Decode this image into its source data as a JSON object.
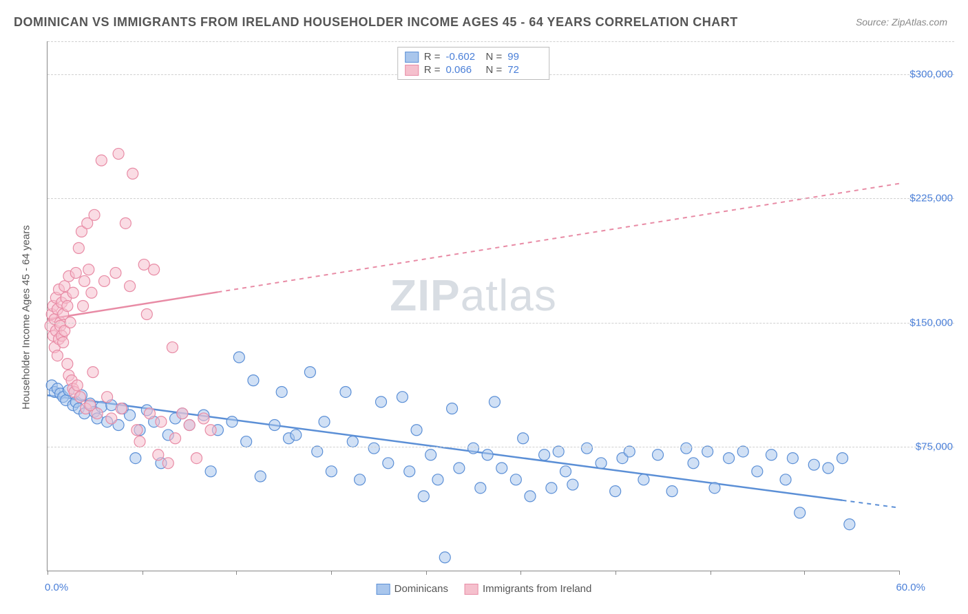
{
  "title": "DOMINICAN VS IMMIGRANTS FROM IRELAND HOUSEHOLDER INCOME AGES 45 - 64 YEARS CORRELATION CHART",
  "source": "Source: ZipAtlas.com",
  "watermark_bold": "ZIP",
  "watermark_light": "atlas",
  "ylabel": "Householder Income Ages 45 - 64 years",
  "chart": {
    "type": "scatter",
    "xlim": [
      0,
      60
    ],
    "ylim": [
      0,
      320000
    ],
    "x_axis_labels": {
      "left": "0.0%",
      "right": "60.0%"
    },
    "yticks": [
      75000,
      150000,
      225000,
      300000
    ],
    "ytick_labels": [
      "$75,000",
      "$150,000",
      "$225,000",
      "$300,000"
    ],
    "xtick_positions": [
      0,
      6.7,
      13.3,
      20,
      26.7,
      33.3,
      40,
      46.7,
      53.3,
      60
    ],
    "grid_color": "#d0d0d0",
    "background_color": "#ffffff",
    "marker_radius": 8,
    "marker_opacity": 0.55,
    "series": [
      {
        "name": "Dominicans",
        "fill": "#a9c6ec",
        "stroke": "#5b8fd6",
        "r_value": "-0.602",
        "n_value": "99",
        "regression": {
          "x1": 0,
          "y1": 106000,
          "x2": 60,
          "y2": 38000,
          "solid_end_x": 56
        },
        "points": [
          [
            0.3,
            112000
          ],
          [
            0.5,
            108000
          ],
          [
            0.7,
            110000
          ],
          [
            0.9,
            107000
          ],
          [
            1.1,
            105000
          ],
          [
            1.3,
            103000
          ],
          [
            1.5,
            109000
          ],
          [
            1.8,
            100000
          ],
          [
            2.0,
            102000
          ],
          [
            2.2,
            98000
          ],
          [
            2.4,
            106000
          ],
          [
            2.6,
            95000
          ],
          [
            3.0,
            101000
          ],
          [
            3.3,
            96000
          ],
          [
            3.5,
            92000
          ],
          [
            3.8,
            99000
          ],
          [
            4.2,
            90000
          ],
          [
            4.5,
            100000
          ],
          [
            5.0,
            88000
          ],
          [
            5.3,
            98000
          ],
          [
            5.8,
            94000
          ],
          [
            6.2,
            68000
          ],
          [
            6.5,
            85000
          ],
          [
            7.0,
            97000
          ],
          [
            7.5,
            90000
          ],
          [
            8.0,
            65000
          ],
          [
            8.5,
            82000
          ],
          [
            9.0,
            92000
          ],
          [
            9.5,
            95000
          ],
          [
            10.0,
            88000
          ],
          [
            11.0,
            94000
          ],
          [
            11.5,
            60000
          ],
          [
            12.0,
            85000
          ],
          [
            13.0,
            90000
          ],
          [
            13.5,
            129000
          ],
          [
            14.0,
            78000
          ],
          [
            14.5,
            115000
          ],
          [
            15.0,
            57000
          ],
          [
            16.0,
            88000
          ],
          [
            16.5,
            108000
          ],
          [
            17.0,
            80000
          ],
          [
            17.5,
            82000
          ],
          [
            18.5,
            120000
          ],
          [
            19.0,
            72000
          ],
          [
            19.5,
            90000
          ],
          [
            20.0,
            60000
          ],
          [
            21.0,
            108000
          ],
          [
            21.5,
            78000
          ],
          [
            22.0,
            55000
          ],
          [
            23.0,
            74000
          ],
          [
            23.5,
            102000
          ],
          [
            24.0,
            65000
          ],
          [
            25.0,
            105000
          ],
          [
            25.5,
            60000
          ],
          [
            26.0,
            85000
          ],
          [
            26.5,
            45000
          ],
          [
            27.0,
            70000
          ],
          [
            27.5,
            55000
          ],
          [
            28.0,
            8000
          ],
          [
            28.5,
            98000
          ],
          [
            29.0,
            62000
          ],
          [
            30.0,
            74000
          ],
          [
            30.5,
            50000
          ],
          [
            31.0,
            70000
          ],
          [
            31.5,
            102000
          ],
          [
            32.0,
            62000
          ],
          [
            33.0,
            55000
          ],
          [
            33.5,
            80000
          ],
          [
            34.0,
            45000
          ],
          [
            35.0,
            70000
          ],
          [
            35.5,
            50000
          ],
          [
            36.0,
            72000
          ],
          [
            36.5,
            60000
          ],
          [
            37.0,
            52000
          ],
          [
            38.0,
            74000
          ],
          [
            39.0,
            65000
          ],
          [
            40.0,
            48000
          ],
          [
            40.5,
            68000
          ],
          [
            41.0,
            72000
          ],
          [
            42.0,
            55000
          ],
          [
            43.0,
            70000
          ],
          [
            44.0,
            48000
          ],
          [
            45.0,
            74000
          ],
          [
            45.5,
            65000
          ],
          [
            46.5,
            72000
          ],
          [
            47.0,
            50000
          ],
          [
            48.0,
            68000
          ],
          [
            49.0,
            72000
          ],
          [
            50.0,
            60000
          ],
          [
            51.0,
            70000
          ],
          [
            52.0,
            55000
          ],
          [
            52.5,
            68000
          ],
          [
            53.0,
            35000
          ],
          [
            54.0,
            64000
          ],
          [
            55.0,
            62000
          ],
          [
            56.0,
            68000
          ],
          [
            56.5,
            28000
          ]
        ]
      },
      {
        "name": "Immigrants from Ireland",
        "fill": "#f5c0cd",
        "stroke": "#e88ba5",
        "r_value": "0.066",
        "n_value": "72",
        "regression": {
          "x1": 0,
          "y1": 152000,
          "x2": 60,
          "y2": 234000,
          "solid_end_x": 12
        },
        "points": [
          [
            0.2,
            148000
          ],
          [
            0.3,
            155000
          ],
          [
            0.4,
            142000
          ],
          [
            0.4,
            160000
          ],
          [
            0.5,
            135000
          ],
          [
            0.5,
            152000
          ],
          [
            0.6,
            145000
          ],
          [
            0.6,
            165000
          ],
          [
            0.7,
            130000
          ],
          [
            0.7,
            158000
          ],
          [
            0.8,
            140000
          ],
          [
            0.8,
            170000
          ],
          [
            0.9,
            150000
          ],
          [
            0.9,
            148000
          ],
          [
            1.0,
            142000
          ],
          [
            1.0,
            162000
          ],
          [
            1.1,
            138000
          ],
          [
            1.1,
            155000
          ],
          [
            1.2,
            145000
          ],
          [
            1.2,
            172000
          ],
          [
            1.3,
            165000
          ],
          [
            1.4,
            125000
          ],
          [
            1.4,
            160000
          ],
          [
            1.5,
            118000
          ],
          [
            1.5,
            178000
          ],
          [
            1.6,
            150000
          ],
          [
            1.7,
            115000
          ],
          [
            1.8,
            110000
          ],
          [
            1.8,
            168000
          ],
          [
            1.9,
            108000
          ],
          [
            2.0,
            180000
          ],
          [
            2.1,
            112000
          ],
          [
            2.2,
            195000
          ],
          [
            2.3,
            105000
          ],
          [
            2.4,
            205000
          ],
          [
            2.5,
            160000
          ],
          [
            2.6,
            175000
          ],
          [
            2.7,
            98000
          ],
          [
            2.8,
            210000
          ],
          [
            2.9,
            182000
          ],
          [
            3.0,
            100000
          ],
          [
            3.1,
            168000
          ],
          [
            3.2,
            120000
          ],
          [
            3.3,
            215000
          ],
          [
            3.5,
            95000
          ],
          [
            3.8,
            248000
          ],
          [
            4.0,
            175000
          ],
          [
            4.2,
            105000
          ],
          [
            4.5,
            92000
          ],
          [
            4.8,
            180000
          ],
          [
            5.0,
            252000
          ],
          [
            5.2,
            98000
          ],
          [
            5.5,
            210000
          ],
          [
            5.8,
            172000
          ],
          [
            6.0,
            240000
          ],
          [
            6.3,
            85000
          ],
          [
            6.5,
            78000
          ],
          [
            6.8,
            185000
          ],
          [
            7.0,
            155000
          ],
          [
            7.2,
            95000
          ],
          [
            7.5,
            182000
          ],
          [
            7.8,
            70000
          ],
          [
            8.0,
            90000
          ],
          [
            8.5,
            65000
          ],
          [
            8.8,
            135000
          ],
          [
            9.0,
            80000
          ],
          [
            9.5,
            95000
          ],
          [
            10.0,
            88000
          ],
          [
            10.5,
            68000
          ],
          [
            11.0,
            92000
          ],
          [
            11.5,
            85000
          ]
        ]
      }
    ]
  },
  "bottom_legend": [
    {
      "label": "Dominicans",
      "fill": "#a9c6ec",
      "stroke": "#5b8fd6"
    },
    {
      "label": "Immigrants from Ireland",
      "fill": "#f5c0cd",
      "stroke": "#e88ba5"
    }
  ]
}
